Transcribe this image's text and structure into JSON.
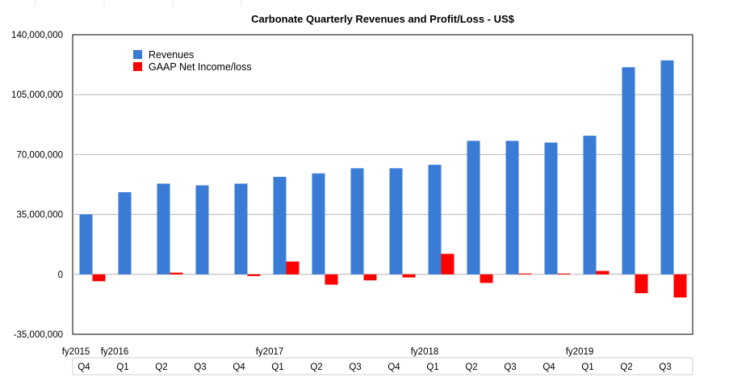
{
  "chart_data": {
    "type": "bar",
    "title": "Carbonate Quarterly Revenues and Profit/Loss - US$",
    "xlabel": "",
    "ylabel": "",
    "ylim": [
      -35000000,
      140000000
    ],
    "yticks": [
      -35000000,
      0,
      35000000,
      70000000,
      105000000,
      140000000
    ],
    "ytick_labels": [
      "-35,000,000",
      "0",
      "35,000,000",
      "70,000,000",
      "105,000,000",
      "140,000,000"
    ],
    "grid": true,
    "legend_position": "top-left",
    "categories": [
      "Q4",
      "Q1",
      "Q2",
      "Q3",
      "Q4",
      "Q1",
      "Q2",
      "Q3",
      "Q4",
      "Q1",
      "Q2",
      "Q3",
      "Q4",
      "Q1",
      "Q2",
      "Q3"
    ],
    "year_labels": [
      {
        "index": 0,
        "label": "fy2015"
      },
      {
        "index": 1,
        "label": "fy2016"
      },
      {
        "index": 5,
        "label": "fy2017"
      },
      {
        "index": 9,
        "label": "fy2018"
      },
      {
        "index": 13,
        "label": "fy2019"
      }
    ],
    "series": [
      {
        "name": "Revenues",
        "color": "#3a7bd5",
        "values": [
          35000000,
          48000000,
          53000000,
          52000000,
          53000000,
          57000000,
          59000000,
          62000000,
          62000000,
          64000000,
          78000000,
          78000000,
          77000000,
          81000000,
          121000000,
          125000000
        ]
      },
      {
        "name": "GAAP Net Income/loss",
        "color": "#ff0000",
        "values": [
          -4000000,
          0,
          1000000,
          0,
          -1000000,
          7500000,
          -6000000,
          -3500000,
          -1800000,
          12000000,
          -5000000,
          500000,
          500000,
          2000000,
          -11000000,
          -13500000
        ]
      }
    ]
  }
}
